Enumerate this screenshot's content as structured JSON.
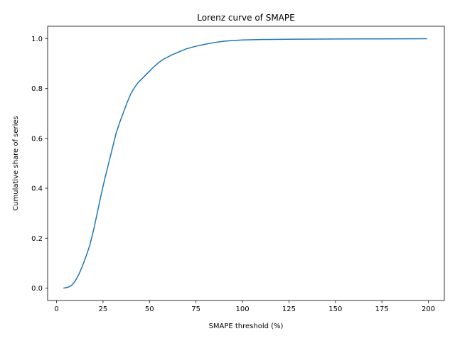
{
  "chart_data": {
    "type": "line",
    "title": "Lorenz curve of SMAPE",
    "xlabel": "SMAPE threshold (%)",
    "ylabel": "Cumulative share of series",
    "xlim": [
      -4.8,
      208.6
    ],
    "ylim": [
      -0.05,
      1.05
    ],
    "xticks": [
      0,
      25,
      50,
      75,
      100,
      125,
      150,
      175,
      200
    ],
    "yticks": [
      0.0,
      0.2,
      0.4,
      0.6,
      0.8,
      1.0
    ],
    "xtick_labels": [
      "0",
      "25",
      "50",
      "75",
      "100",
      "125",
      "150",
      "175",
      "200"
    ],
    "ytick_labels": [
      "0.0",
      "0.2",
      "0.4",
      "0.6",
      "0.8",
      "1.0"
    ],
    "grid": false,
    "color": "#1f77b4",
    "series": [
      {
        "x": [
          4,
          6,
          8,
          10,
          12,
          14,
          16,
          18,
          20,
          22,
          24,
          26,
          28,
          30,
          32,
          34,
          36,
          38,
          40,
          42,
          44,
          46,
          48,
          50,
          52,
          55,
          58,
          62,
          66,
          70,
          75,
          80,
          85,
          90,
          95,
          100,
          110,
          125,
          150,
          175,
          199
        ],
        "y": [
          0.0,
          0.003,
          0.01,
          0.028,
          0.055,
          0.09,
          0.13,
          0.175,
          0.235,
          0.305,
          0.375,
          0.44,
          0.5,
          0.56,
          0.62,
          0.665,
          0.705,
          0.745,
          0.78,
          0.805,
          0.825,
          0.84,
          0.855,
          0.87,
          0.885,
          0.905,
          0.92,
          0.935,
          0.948,
          0.96,
          0.97,
          0.978,
          0.985,
          0.99,
          0.993,
          0.995,
          0.997,
          0.998,
          0.999,
          0.9995,
          1.0
        ]
      }
    ]
  }
}
